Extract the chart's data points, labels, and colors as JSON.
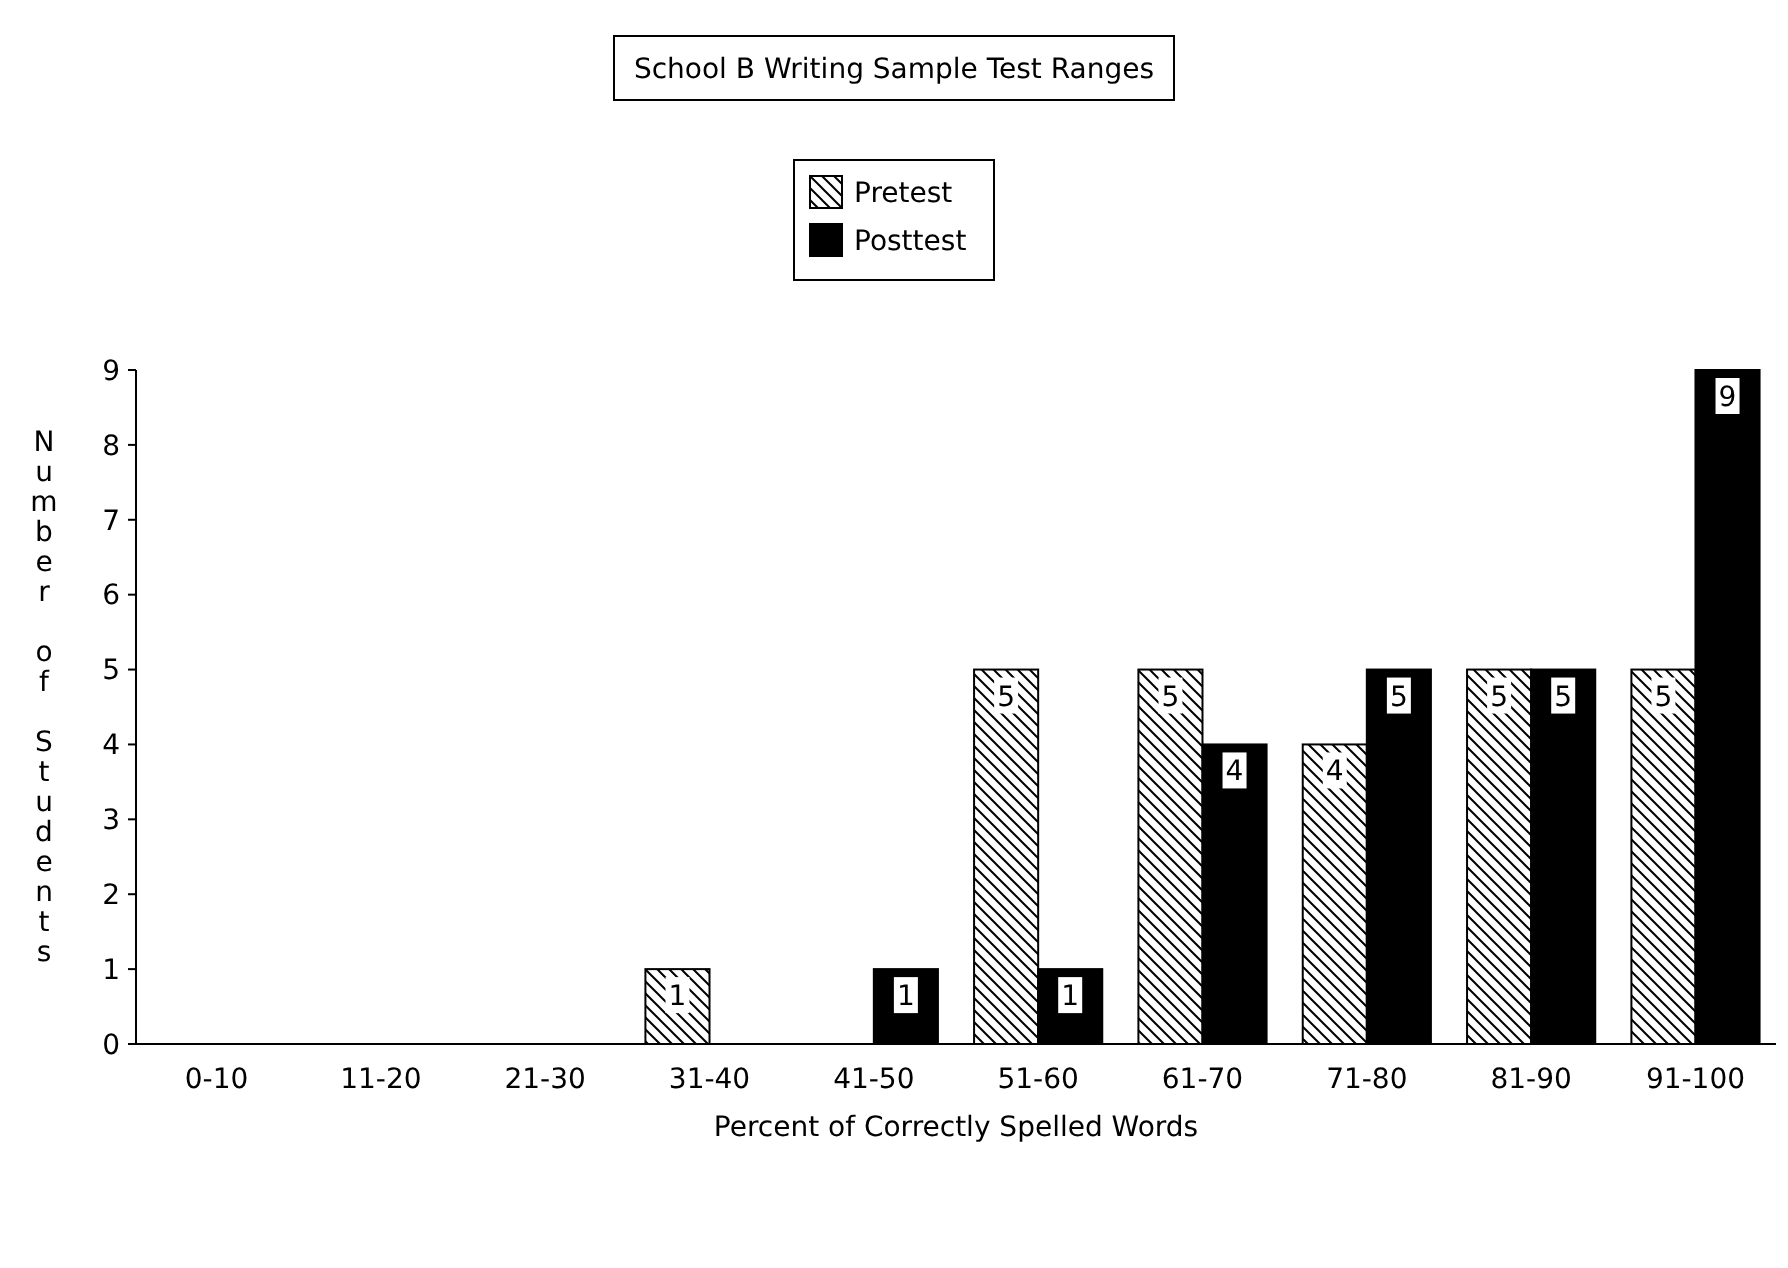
{
  "chart_data": {
    "type": "bar",
    "title": "School B Writing Sample Test Ranges",
    "xlabel": "Percent of Correctly Spelled Words",
    "ylabel": "Number of Students",
    "categories": [
      "0-10",
      "11-20",
      "21-30",
      "31-40",
      "41-50",
      "51-60",
      "61-70",
      "71-80",
      "81-90",
      "91-100"
    ],
    "series": [
      {
        "name": "Pretest",
        "color": "#000000",
        "values": [
          0,
          0,
          0,
          1,
          0,
          5,
          5,
          4,
          5,
          5
        ],
        "value_labels": [
          null,
          null,
          null,
          "1",
          null,
          "5",
          "5",
          "4",
          "5",
          "5"
        ]
      },
      {
        "name": "Posttest",
        "color": "#000000",
        "values": [
          0,
          0,
          0,
          0,
          1,
          1,
          4,
          5,
          5,
          9
        ],
        "value_labels": [
          null,
          null,
          null,
          null,
          "1",
          "1",
          "4",
          "5",
          "5",
          "9"
        ]
      }
    ],
    "ylim": [
      0,
      9
    ],
    "yticks": [
      0,
      1,
      2,
      3,
      4,
      5,
      6,
      7,
      8,
      9
    ],
    "grid": false,
    "legend": "top"
  }
}
